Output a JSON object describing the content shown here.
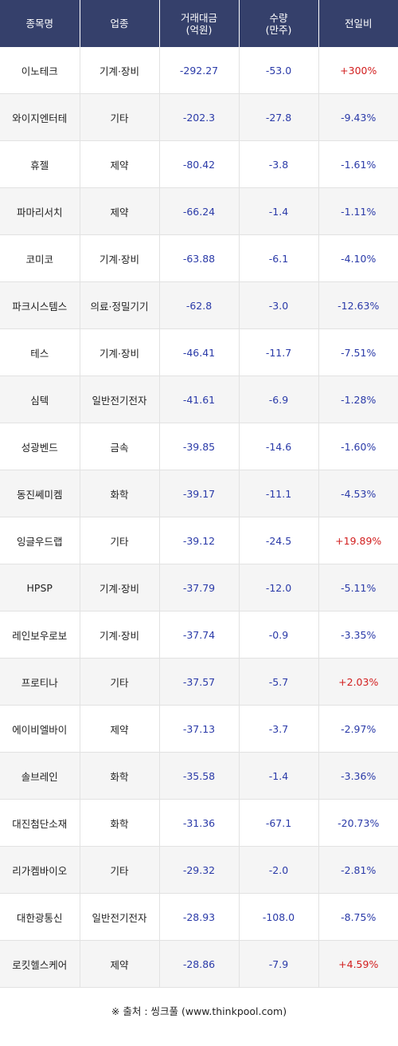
{
  "header": {
    "name": "종목명",
    "sector": "업종",
    "amount_line1": "거래대금",
    "amount_line2": "(억원)",
    "volume_line1": "수량",
    "volume_line2": "(만주)",
    "change": "전일비"
  },
  "rows": [
    {
      "name": "이노테크",
      "sector": "기계·장비",
      "amount": "-292.27",
      "volume": "-53.0",
      "change": "+300%",
      "up": true
    },
    {
      "name": "와이지엔터테",
      "sector": "기타",
      "amount": "-202.3",
      "volume": "-27.8",
      "change": "-9.43%",
      "up": false
    },
    {
      "name": "휴젤",
      "sector": "제약",
      "amount": "-80.42",
      "volume": "-3.8",
      "change": "-1.61%",
      "up": false
    },
    {
      "name": "파마리서치",
      "sector": "제약",
      "amount": "-66.24",
      "volume": "-1.4",
      "change": "-1.11%",
      "up": false
    },
    {
      "name": "코미코",
      "sector": "기계·장비",
      "amount": "-63.88",
      "volume": "-6.1",
      "change": "-4.10%",
      "up": false
    },
    {
      "name": "파크시스템스",
      "sector": "의료·정밀기기",
      "amount": "-62.8",
      "volume": "-3.0",
      "change": "-12.63%",
      "up": false
    },
    {
      "name": "테스",
      "sector": "기계·장비",
      "amount": "-46.41",
      "volume": "-11.7",
      "change": "-7.51%",
      "up": false
    },
    {
      "name": "심텍",
      "sector": "일반전기전자",
      "amount": "-41.61",
      "volume": "-6.9",
      "change": "-1.28%",
      "up": false
    },
    {
      "name": "성광벤드",
      "sector": "금속",
      "amount": "-39.85",
      "volume": "-14.6",
      "change": "-1.60%",
      "up": false
    },
    {
      "name": "동진쎄미켐",
      "sector": "화학",
      "amount": "-39.17",
      "volume": "-11.1",
      "change": "-4.53%",
      "up": false
    },
    {
      "name": "잉글우드랩",
      "sector": "기타",
      "amount": "-39.12",
      "volume": "-24.5",
      "change": "+19.89%",
      "up": true
    },
    {
      "name": "HPSP",
      "sector": "기계·장비",
      "amount": "-37.79",
      "volume": "-12.0",
      "change": "-5.11%",
      "up": false
    },
    {
      "name": "레인보우로보",
      "sector": "기계·장비",
      "amount": "-37.74",
      "volume": "-0.9",
      "change": "-3.35%",
      "up": false
    },
    {
      "name": "프로티나",
      "sector": "기타",
      "amount": "-37.57",
      "volume": "-5.7",
      "change": "+2.03%",
      "up": true
    },
    {
      "name": "에이비엘바이",
      "sector": "제약",
      "amount": "-37.13",
      "volume": "-3.7",
      "change": "-2.97%",
      "up": false
    },
    {
      "name": "솔브레인",
      "sector": "화학",
      "amount": "-35.58",
      "volume": "-1.4",
      "change": "-3.36%",
      "up": false
    },
    {
      "name": "대진첨단소재",
      "sector": "화학",
      "amount": "-31.36",
      "volume": "-67.1",
      "change": "-20.73%",
      "up": false
    },
    {
      "name": "리가켐바이오",
      "sector": "기타",
      "amount": "-29.32",
      "volume": "-2.0",
      "change": "-2.81%",
      "up": false
    },
    {
      "name": "대한광통신",
      "sector": "일반전기전자",
      "amount": "-28.93",
      "volume": "-108.0",
      "change": "-8.75%",
      "up": false
    },
    {
      "name": "로킷헬스케어",
      "sector": "제약",
      "amount": "-28.86",
      "volume": "-7.9",
      "change": "+4.59%",
      "up": true
    }
  ],
  "footer": {
    "source": "※ 출처 : 씽크풀 (www.thinkpool.com)"
  },
  "colors": {
    "header_bg": "#35406b",
    "negative": "#2a3aa8",
    "positive": "#d21e1e"
  }
}
